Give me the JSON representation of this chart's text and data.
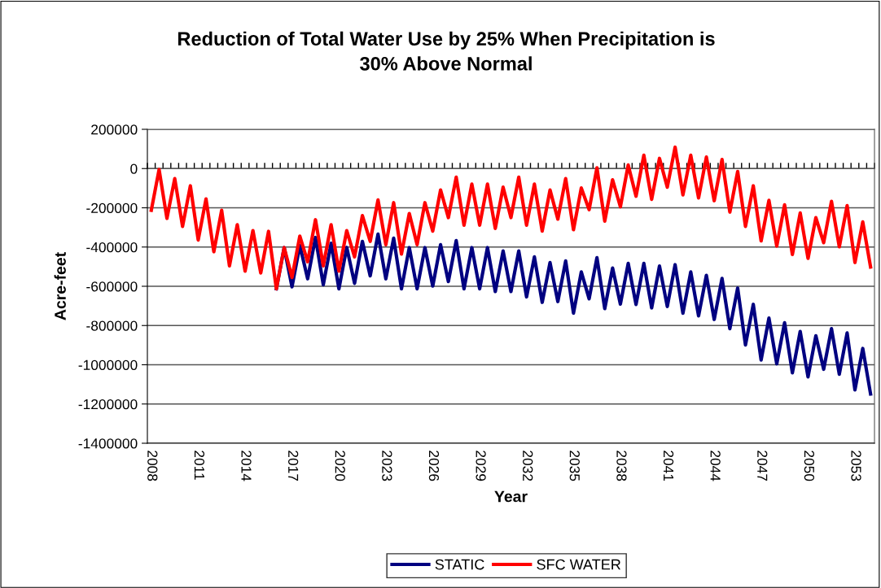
{
  "chart_data": {
    "type": "line",
    "title": "Reduction of Total Water Use by 25% When Precipitation is\n30% Above Normal",
    "xlabel": "Year",
    "ylabel": "Acre-feet",
    "categories": [
      "2008",
      null,
      null,
      null,
      null,
      null,
      "2011",
      null,
      null,
      null,
      null,
      null,
      "2014",
      null,
      null,
      null,
      null,
      null,
      "2017",
      null,
      null,
      null,
      null,
      null,
      "2020",
      null,
      null,
      null,
      null,
      null,
      "2023",
      null,
      null,
      null,
      null,
      null,
      "2026",
      null,
      null,
      null,
      null,
      null,
      "2029",
      null,
      null,
      null,
      null,
      null,
      "2032",
      null,
      null,
      null,
      null,
      null,
      "2035",
      null,
      null,
      null,
      null,
      null,
      "2038",
      null,
      null,
      null,
      null,
      null,
      "2041",
      null,
      null,
      null,
      null,
      null,
      "2044",
      null,
      null,
      null,
      null,
      null,
      "2047",
      null,
      null,
      null,
      null,
      null,
      "2050",
      null,
      null,
      null,
      null,
      null,
      "2053",
      null,
      null
    ],
    "series": [
      {
        "name": "STATIC",
        "color": "#000080",
        "values": [
          null,
          null,
          null,
          null,
          null,
          null,
          null,
          null,
          null,
          null,
          null,
          null,
          null,
          null,
          null,
          null,
          -613000,
          -403000,
          -603000,
          -392000,
          -562000,
          -351000,
          -592000,
          -381000,
          -613000,
          -402000,
          -585000,
          -371000,
          -547000,
          -334000,
          -562000,
          -355000,
          -613000,
          -403000,
          -613000,
          -403000,
          -599000,
          -388000,
          -576000,
          -367000,
          -613000,
          -403000,
          -613000,
          -403000,
          -627000,
          -420000,
          -627000,
          -420000,
          -654000,
          -450000,
          -682000,
          -479000,
          -678000,
          -471000,
          -737000,
          -527000,
          -664000,
          -454000,
          -714000,
          -507000,
          -691000,
          -483000,
          -693000,
          -483000,
          -710000,
          -497000,
          -703000,
          -490000,
          -737000,
          -527000,
          -751000,
          -544000,
          -769000,
          -560000,
          -816000,
          -609000,
          -899000,
          -692000,
          -976000,
          -762000,
          -995000,
          -786000,
          -1041000,
          -830000,
          -1062000,
          -852000,
          -1023000,
          -816000,
          -1048000,
          -838000,
          -1128000,
          -917000,
          -1149000
        ]
      },
      {
        "name": "SFC WATER",
        "color": "#ff0000",
        "values": [
          -213000,
          -5000,
          -254000,
          -51000,
          -295000,
          -88000,
          -364000,
          -155000,
          -424000,
          -213000,
          -496000,
          -286000,
          -523000,
          -316000,
          -532000,
          -320000,
          -613000,
          -403000,
          -555000,
          -344000,
          -475000,
          -261000,
          -496000,
          -286000,
          -523000,
          -316000,
          -450000,
          -240000,
          -371000,
          -160000,
          -388000,
          -174000,
          -436000,
          -229000,
          -388000,
          -174000,
          -319000,
          -109000,
          -250000,
          -44000,
          -289000,
          -79000,
          -289000,
          -79000,
          -305000,
          -95000,
          -250000,
          -44000,
          -289000,
          -79000,
          -319000,
          -109000,
          -258000,
          -51000,
          -312000,
          -99000,
          -210000,
          4000,
          -268000,
          -57000,
          -195000,
          18000,
          -141000,
          68000,
          -157000,
          52000,
          -95000,
          109000,
          -134000,
          68000,
          -150000,
          59000,
          -164000,
          46000,
          -222000,
          -15000,
          -295000,
          -88000,
          -369000,
          -162000,
          -395000,
          -185000,
          -438000,
          -226000,
          -458000,
          -250000,
          -378000,
          -167000,
          -399000,
          -189000,
          -479000,
          -272000,
          -502000
        ]
      }
    ],
    "ylim": [
      -1400000,
      200000
    ],
    "yticks": [
      -1400000,
      -1200000,
      -1000000,
      -800000,
      -600000,
      -400000,
      -200000,
      0,
      200000
    ],
    "grid": "y",
    "legend": "bottom",
    "marker": "none",
    "line_style": "solid"
  }
}
